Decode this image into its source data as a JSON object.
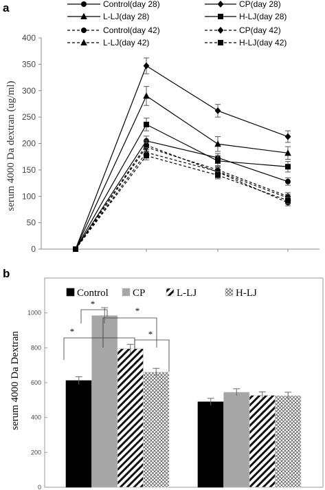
{
  "chart_data": [
    {
      "panel_label": "a",
      "type": "line",
      "ylabel": "serum 4000 Da dextran (ug/ml)",
      "ylim": [
        0,
        400
      ],
      "yticks": [
        0,
        50,
        100,
        150,
        200,
        250,
        300,
        350,
        400
      ],
      "x_positions": 4,
      "grid": false,
      "legend_placement": "top, two columns",
      "series": [
        {
          "name": "Control(day 28)",
          "marker": "circle",
          "line": "solid",
          "values": [
            0,
            205,
            173,
            128
          ],
          "errors": [
            0,
            9,
            8,
            7
          ]
        },
        {
          "name": "CP(day 28)",
          "marker": "diamond",
          "line": "solid",
          "values": [
            0,
            347,
            262,
            213
          ],
          "errors": [
            0,
            15,
            12,
            11
          ]
        },
        {
          "name": "L-LJ(day 28)",
          "marker": "triangle",
          "line": "solid",
          "values": [
            0,
            290,
            199,
            182
          ],
          "errors": [
            0,
            18,
            14,
            12
          ]
        },
        {
          "name": "H-LJ(day 28)",
          "marker": "square",
          "line": "solid",
          "values": [
            0,
            236,
            167,
            156
          ],
          "errors": [
            0,
            12,
            10,
            10
          ]
        },
        {
          "name": "Control(day 42)",
          "marker": "circle",
          "line": "dashed",
          "values": [
            0,
            197,
            146,
            88
          ],
          "errors": [
            0,
            9,
            8,
            6
          ]
        },
        {
          "name": "CP(day 42)",
          "marker": "diamond",
          "line": "dashed",
          "values": [
            0,
            193,
            150,
            100
          ],
          "errors": [
            0,
            9,
            8,
            7
          ]
        },
        {
          "name": "L-LJ(day 42)",
          "marker": "triangle",
          "line": "dashed",
          "values": [
            0,
            183,
            147,
            97
          ],
          "errors": [
            0,
            9,
            8,
            7
          ]
        },
        {
          "name": "H-LJ(day 42)",
          "marker": "square",
          "line": "dashed",
          "values": [
            0,
            177,
            140,
            92
          ],
          "errors": [
            0,
            8,
            7,
            6
          ]
        }
      ]
    },
    {
      "panel_label": "b",
      "type": "bar",
      "ylabel": "serum 4000 Da Dextran",
      "ylim": [
        0,
        1200
      ],
      "yticks": [
        0,
        200,
        400,
        600,
        800,
        1000
      ],
      "grid": false,
      "legend_placement": "top",
      "groups": 2,
      "series": [
        {
          "name": "Control",
          "pattern": "black",
          "values": [
            612,
            490
          ],
          "errors": [
            22,
            20
          ]
        },
        {
          "name": "CP",
          "pattern": "gray",
          "values": [
            985,
            545
          ],
          "errors": [
            45,
            20
          ]
        },
        {
          "name": "L-LJ",
          "pattern": "diagonal-hatch",
          "values": [
            795,
            527
          ],
          "errors": [
            25,
            20
          ]
        },
        {
          "name": "H-LJ",
          "pattern": "crosshatch",
          "values": [
            660,
            525
          ],
          "errors": [
            22,
            20
          ]
        }
      ],
      "significance": [
        {
          "between": [
            "Control",
            "CP"
          ],
          "label": "*"
        },
        {
          "between": [
            "Control",
            "L-LJ"
          ],
          "label": "*"
        },
        {
          "between": [
            "CP",
            "H-LJ"
          ],
          "label": "*"
        },
        {
          "between": [
            "L-LJ",
            "H-LJ"
          ],
          "label": "*"
        }
      ]
    }
  ]
}
